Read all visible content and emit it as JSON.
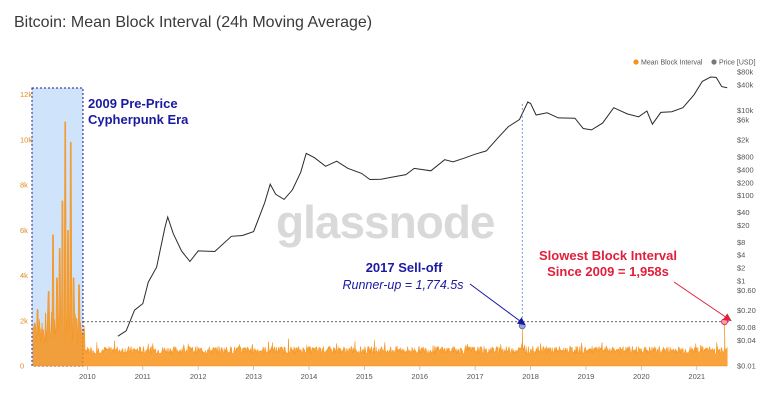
{
  "page": {
    "title": "Bitcoin: Mean Block Interval (24h Moving Average)"
  },
  "watermark": "glassnode",
  "colors": {
    "interval": "#f7931a",
    "price": "#2b2b2b",
    "highlight_fill": "#cfe3fb",
    "highlight_border": "#1a1a8c",
    "ann_blue": "#1a1aa0",
    "ann_red": "#e0203c",
    "marker": "#9aa4d8"
  },
  "chart_data": {
    "type": "line",
    "title": "Bitcoin: Mean Block Interval (24h Moving Average)",
    "legend": {
      "placement": "top-right",
      "entries": [
        "Mean Block Interval",
        "Price [USD]"
      ]
    },
    "x_axis": {
      "ticks": [
        "2010",
        "2011",
        "2012",
        "2013",
        "2014",
        "2015",
        "2016",
        "2017",
        "2018",
        "2019",
        "2020",
        "2021"
      ],
      "range": [
        2009.0,
        2021.6
      ]
    },
    "y_left": {
      "ticks": [
        "0",
        "2k",
        "4k",
        "6k",
        "8k",
        "10k",
        "12k"
      ],
      "range": [
        0,
        13000
      ]
    },
    "y_right": {
      "scale": "log",
      "ticks": [
        "$0.01",
        "$0.04",
        "$0.08",
        "$0.20",
        "$0.60",
        "$1",
        "$2",
        "$4",
        "$8",
        "$20",
        "$40",
        "$100",
        "$200",
        "$400",
        "$800",
        "$2k",
        "$6k",
        "$10k",
        "$40k",
        "$80k"
      ],
      "range": [
        0.01,
        80000
      ]
    },
    "series": [
      {
        "name": "Price [USD]",
        "axis": "right",
        "points": [
          [
            2010.55,
            0.05
          ],
          [
            2010.7,
            0.07
          ],
          [
            2010.85,
            0.2
          ],
          [
            2011.0,
            0.3
          ],
          [
            2011.1,
            0.9
          ],
          [
            2011.25,
            2
          ],
          [
            2011.4,
            18
          ],
          [
            2011.45,
            30
          ],
          [
            2011.55,
            13
          ],
          [
            2011.7,
            5
          ],
          [
            2011.85,
            3
          ],
          [
            2012.0,
            5
          ],
          [
            2012.3,
            5
          ],
          [
            2012.6,
            11
          ],
          [
            2012.8,
            12
          ],
          [
            2013.0,
            14
          ],
          [
            2013.2,
            70
          ],
          [
            2013.3,
            180
          ],
          [
            2013.4,
            110
          ],
          [
            2013.55,
            80
          ],
          [
            2013.7,
            130
          ],
          [
            2013.85,
            350
          ],
          [
            2013.95,
            1000
          ],
          [
            2014.1,
            800
          ],
          [
            2014.3,
            500
          ],
          [
            2014.5,
            620
          ],
          [
            2014.7,
            450
          ],
          [
            2014.95,
            320
          ],
          [
            2015.1,
            230
          ],
          [
            2015.3,
            240
          ],
          [
            2015.5,
            260
          ],
          [
            2015.75,
            300
          ],
          [
            2015.9,
            420
          ],
          [
            2016.2,
            400
          ],
          [
            2016.45,
            700
          ],
          [
            2016.6,
            620
          ],
          [
            2016.8,
            720
          ],
          [
            2017.0,
            960
          ],
          [
            2017.2,
            1150
          ],
          [
            2017.4,
            2300
          ],
          [
            2017.6,
            4000
          ],
          [
            2017.8,
            6000
          ],
          [
            2017.95,
            15000
          ],
          [
            2018.0,
            14000
          ],
          [
            2018.1,
            8000
          ],
          [
            2018.3,
            9000
          ],
          [
            2018.5,
            6500
          ],
          [
            2018.8,
            6400
          ],
          [
            2018.95,
            3700
          ],
          [
            2019.1,
            3600
          ],
          [
            2019.3,
            5000
          ],
          [
            2019.5,
            11500
          ],
          [
            2019.75,
            8000
          ],
          [
            2019.95,
            7200
          ],
          [
            2020.1,
            9500
          ],
          [
            2020.2,
            5000
          ],
          [
            2020.35,
            8800
          ],
          [
            2020.55,
            9300
          ],
          [
            2020.75,
            11500
          ],
          [
            2020.95,
            24000
          ],
          [
            2021.1,
            47000
          ],
          [
            2021.25,
            58000
          ],
          [
            2021.35,
            60000
          ],
          [
            2021.45,
            35000
          ],
          [
            2021.55,
            34000
          ]
        ]
      },
      {
        "name": "Mean Block Interval",
        "axis": "left",
        "early_peaks": [
          [
            2009.05,
            1900
          ],
          [
            2009.1,
            2500
          ],
          [
            2009.2,
            1600
          ],
          [
            2009.3,
            3300
          ],
          [
            2009.38,
            5800
          ],
          [
            2009.45,
            3900
          ],
          [
            2009.5,
            5200
          ],
          [
            2009.55,
            7300
          ],
          [
            2009.6,
            10800
          ],
          [
            2009.65,
            6000
          ],
          [
            2009.7,
            9900
          ],
          [
            2009.75,
            3900
          ],
          [
            2009.8,
            2100
          ],
          [
            2009.85,
            3600
          ],
          [
            2009.9,
            1500
          ]
        ],
        "baseline": 700,
        "notable": [
          {
            "x": 2017.85,
            "y": 1774.5,
            "label": "2017 Sell-off"
          },
          {
            "x": 2021.5,
            "y": 1958,
            "label": "Slowest Block Interval Since 2009"
          }
        ]
      }
    ],
    "reference_line": {
      "y": 1958
    },
    "highlight_region": {
      "x_start": 2009.0,
      "x_end": 2009.92
    }
  },
  "annotations": {
    "pre_price": {
      "line1": "2009 Pre-Price",
      "line2": "Cypherpunk Era"
    },
    "selloff": {
      "title": "2017 Sell-off",
      "sub": "Runner-up = 1,774.5s"
    },
    "slowest": {
      "line1": "Slowest Block Interval",
      "line2": "Since 2009 = 1,958s"
    }
  }
}
